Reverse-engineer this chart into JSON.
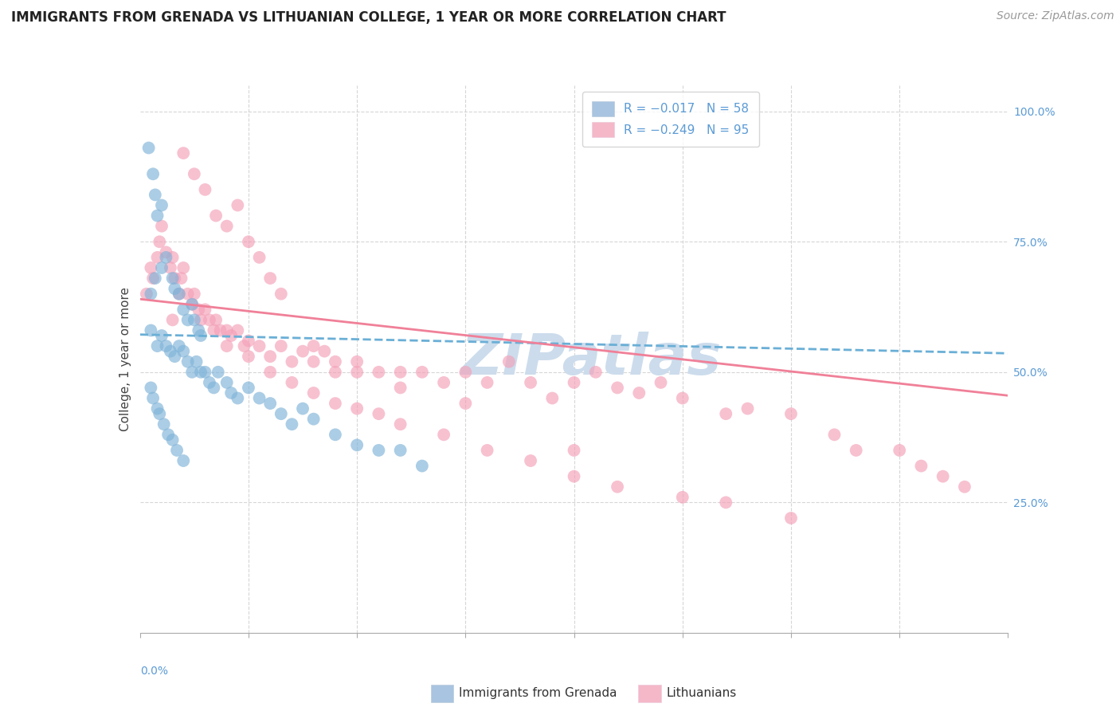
{
  "title": "IMMIGRANTS FROM GRENADA VS LITHUANIAN COLLEGE, 1 YEAR OR MORE CORRELATION CHART",
  "source_text": "Source: ZipAtlas.com",
  "ylabel": "College, 1 year or more",
  "xmin": 0.0,
  "xmax": 0.4,
  "ymin": 0.0,
  "ymax": 1.05,
  "series1_color": "#7fb3d8",
  "series2_color": "#f4a0b8",
  "series1_edge": "#a8c4e0",
  "series2_edge": "#f4c0d0",
  "trendline1_color": "#6aafd6",
  "trendline2_color": "#f08098",
  "background_color": "#ffffff",
  "grid_color": "#cccccc",
  "watermark_text": "ZIPatlas",
  "watermark_color": "#ccdcec",
  "title_fontsize": 12,
  "axis_label_fontsize": 11,
  "tick_fontsize": 10,
  "legend_fontsize": 11,
  "source_fontsize": 10,
  "tick_color": "#5b9bd5",
  "grenada_x": [
    0.004,
    0.006,
    0.007,
    0.008,
    0.01,
    0.005,
    0.007,
    0.01,
    0.012,
    0.015,
    0.016,
    0.018,
    0.02,
    0.022,
    0.024,
    0.025,
    0.027,
    0.028,
    0.005,
    0.008,
    0.01,
    0.012,
    0.014,
    0.016,
    0.018,
    0.02,
    0.022,
    0.024,
    0.026,
    0.028,
    0.03,
    0.032,
    0.034,
    0.036,
    0.04,
    0.042,
    0.045,
    0.05,
    0.055,
    0.06,
    0.065,
    0.07,
    0.075,
    0.08,
    0.09,
    0.1,
    0.11,
    0.12,
    0.13,
    0.005,
    0.006,
    0.008,
    0.009,
    0.011,
    0.013,
    0.015,
    0.017,
    0.02
  ],
  "grenada_y": [
    0.93,
    0.88,
    0.84,
    0.8,
    0.82,
    0.65,
    0.68,
    0.7,
    0.72,
    0.68,
    0.66,
    0.65,
    0.62,
    0.6,
    0.63,
    0.6,
    0.58,
    0.57,
    0.58,
    0.55,
    0.57,
    0.55,
    0.54,
    0.53,
    0.55,
    0.54,
    0.52,
    0.5,
    0.52,
    0.5,
    0.5,
    0.48,
    0.47,
    0.5,
    0.48,
    0.46,
    0.45,
    0.47,
    0.45,
    0.44,
    0.42,
    0.4,
    0.43,
    0.41,
    0.38,
    0.36,
    0.35,
    0.35,
    0.32,
    0.47,
    0.45,
    0.43,
    0.42,
    0.4,
    0.38,
    0.37,
    0.35,
    0.33
  ],
  "lithuanian_x": [
    0.003,
    0.005,
    0.006,
    0.008,
    0.009,
    0.01,
    0.012,
    0.014,
    0.015,
    0.016,
    0.018,
    0.019,
    0.02,
    0.022,
    0.024,
    0.025,
    0.027,
    0.028,
    0.03,
    0.032,
    0.034,
    0.035,
    0.037,
    0.04,
    0.042,
    0.045,
    0.048,
    0.05,
    0.055,
    0.06,
    0.065,
    0.07,
    0.075,
    0.08,
    0.085,
    0.09,
    0.1,
    0.11,
    0.12,
    0.13,
    0.14,
    0.15,
    0.16,
    0.17,
    0.18,
    0.19,
    0.2,
    0.21,
    0.22,
    0.23,
    0.24,
    0.25,
    0.27,
    0.28,
    0.3,
    0.32,
    0.33,
    0.35,
    0.36,
    0.37,
    0.38,
    0.04,
    0.05,
    0.06,
    0.07,
    0.08,
    0.09,
    0.1,
    0.11,
    0.12,
    0.14,
    0.16,
    0.18,
    0.2,
    0.22,
    0.25,
    0.27,
    0.3,
    0.015,
    0.02,
    0.025,
    0.03,
    0.035,
    0.04,
    0.045,
    0.05,
    0.055,
    0.06,
    0.065,
    0.08,
    0.09,
    0.1,
    0.12,
    0.15,
    0.2
  ],
  "lithuanian_y": [
    0.65,
    0.7,
    0.68,
    0.72,
    0.75,
    0.78,
    0.73,
    0.7,
    0.72,
    0.68,
    0.65,
    0.68,
    0.7,
    0.65,
    0.63,
    0.65,
    0.62,
    0.6,
    0.62,
    0.6,
    0.58,
    0.6,
    0.58,
    0.58,
    0.57,
    0.58,
    0.55,
    0.56,
    0.55,
    0.53,
    0.55,
    0.52,
    0.54,
    0.52,
    0.54,
    0.5,
    0.52,
    0.5,
    0.5,
    0.5,
    0.48,
    0.5,
    0.48,
    0.52,
    0.48,
    0.45,
    0.48,
    0.5,
    0.47,
    0.46,
    0.48,
    0.45,
    0.42,
    0.43,
    0.42,
    0.38,
    0.35,
    0.35,
    0.32,
    0.3,
    0.28,
    0.55,
    0.53,
    0.5,
    0.48,
    0.46,
    0.44,
    0.43,
    0.42,
    0.4,
    0.38,
    0.35,
    0.33,
    0.3,
    0.28,
    0.26,
    0.25,
    0.22,
    0.6,
    0.92,
    0.88,
    0.85,
    0.8,
    0.78,
    0.82,
    0.75,
    0.72,
    0.68,
    0.65,
    0.55,
    0.52,
    0.5,
    0.47,
    0.44,
    0.35
  ],
  "grenada_trendline": [
    0.572,
    0.536
  ],
  "lithuanian_trendline": [
    0.64,
    0.455
  ],
  "legend1_label": "R = −0.017",
  "legend1_n": "N = 58",
  "legend2_label": "R = −0.249",
  "legend2_n": "N = 95",
  "legend1_patch_color": "#a8c4e0",
  "legend2_patch_color": "#f4b8c8"
}
